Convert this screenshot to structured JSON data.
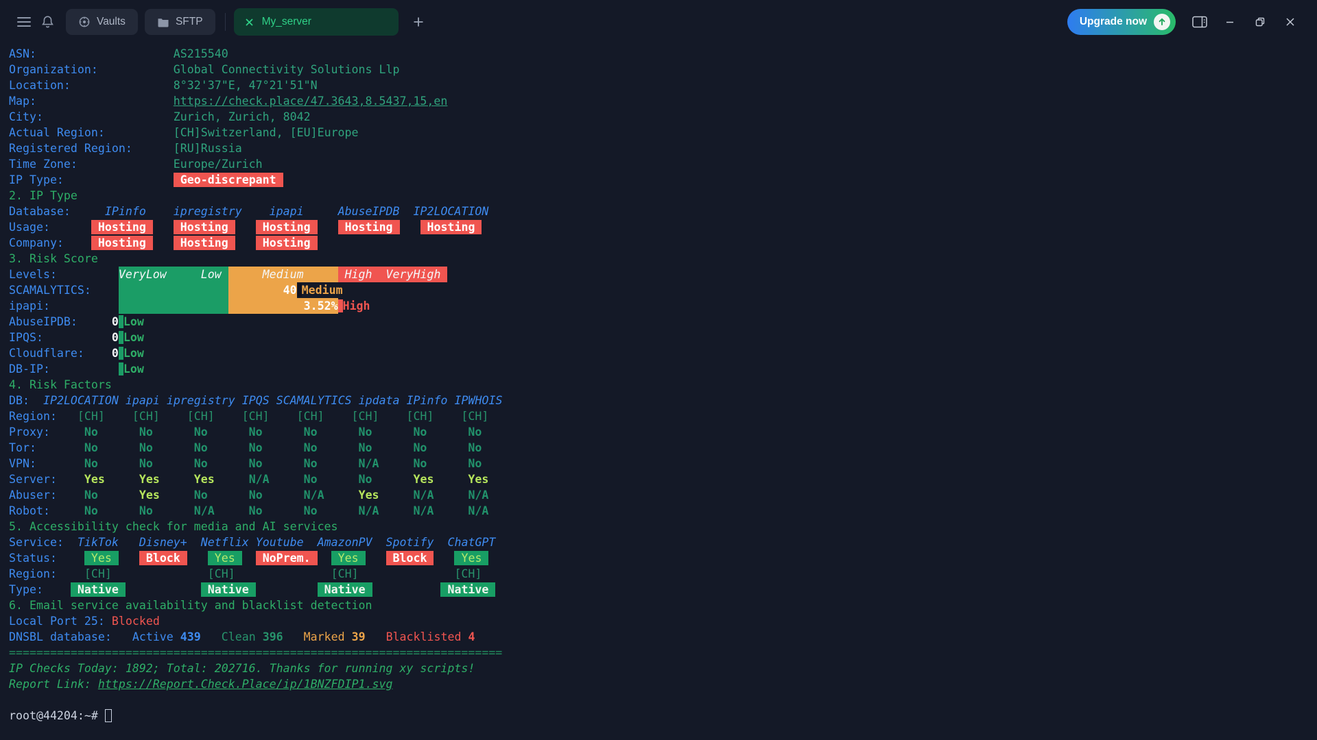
{
  "titlebar": {
    "vaults_label": "Vaults",
    "sftp_label": "SFTP",
    "active_tab_label": "My_server",
    "upgrade_label": "Upgrade now"
  },
  "colors": {
    "background": "#141927",
    "label_blue": "#3e8bf0",
    "value_green": "#2fa37d",
    "header_green": "#2eae67",
    "badge_red": "#f05550",
    "badge_green": "#189e64",
    "bar_orange": "#eca449",
    "lime_yes": "#b5e45c",
    "active_tab_green": "#2fd087",
    "upgrade_gradient": [
      "#2e7cf0",
      "#2abb69"
    ]
  },
  "terminal": {
    "lines": [
      {
        "n": "asn",
        "s": [
          [
            "ASN:",
            "b"
          ],
          [
            "                    "
          ],
          [
            "AS215540",
            "g"
          ]
        ]
      },
      {
        "n": "organization",
        "s": [
          [
            "Organization:",
            "b"
          ],
          [
            "           "
          ],
          [
            "Global Connectivity Solutions Llp",
            "g"
          ]
        ]
      },
      {
        "n": "location",
        "s": [
          [
            "Location:",
            "b"
          ],
          [
            "               "
          ],
          [
            "8°32'37\"E, 47°21'51\"N",
            "g"
          ]
        ]
      },
      {
        "n": "map",
        "s": [
          [
            "Map:",
            "b"
          ],
          [
            "                    "
          ],
          [
            "https://check.place/47.3643,8.5437,15,en",
            "lk",
            "map-link"
          ]
        ]
      },
      {
        "n": "city",
        "s": [
          [
            "City:",
            "b"
          ],
          [
            "                   "
          ],
          [
            "Zurich, Zurich, 8042",
            "g"
          ]
        ]
      },
      {
        "n": "actual-region",
        "s": [
          [
            "Actual Region:",
            "b"
          ],
          [
            "          "
          ],
          [
            "[CH]Switzerland, [EU]Europe",
            "g"
          ]
        ]
      },
      {
        "n": "registered-region",
        "s": [
          [
            "Registered Region:",
            "b"
          ],
          [
            "      "
          ],
          [
            "[RU]Russia",
            "g"
          ]
        ]
      },
      {
        "n": "time-zone",
        "s": [
          [
            "Time Zone:",
            "b"
          ],
          [
            "              "
          ],
          [
            "Europe/Zurich",
            "g"
          ]
        ]
      },
      {
        "n": "ip-type",
        "s": [
          [
            "IP Type:",
            "b"
          ],
          [
            "                "
          ],
          [
            " Geo-discrepant ",
            "rb"
          ]
        ]
      },
      {
        "n": "section-2",
        "s": [
          [
            "2. IP Type",
            "h"
          ]
        ]
      },
      {
        "n": "database-header",
        "s": [
          [
            "Database:",
            "b"
          ],
          [
            "     "
          ],
          [
            "IPinfo",
            "ib"
          ],
          [
            "    "
          ],
          [
            "ipregistry",
            "ib"
          ],
          [
            "    "
          ],
          [
            "ipapi",
            "ib"
          ],
          [
            "     "
          ],
          [
            "AbuseIPDB",
            "ib"
          ],
          [
            "  "
          ],
          [
            "IP2LOCATION",
            "ib"
          ]
        ]
      },
      {
        "n": "usage",
        "s": [
          [
            "Usage:",
            "b"
          ],
          [
            "      "
          ],
          [
            " Hosting ",
            "rb"
          ],
          [
            "   "
          ],
          [
            " Hosting ",
            "rb"
          ],
          [
            "   "
          ],
          [
            " Hosting ",
            "rb"
          ],
          [
            "   "
          ],
          [
            " Hosting ",
            "rb"
          ],
          [
            "   "
          ],
          [
            " Hosting ",
            "rb"
          ]
        ]
      },
      {
        "n": "company",
        "s": [
          [
            "Company:",
            "b"
          ],
          [
            "    "
          ],
          [
            " Hosting ",
            "rb"
          ],
          [
            "   "
          ],
          [
            " Hosting ",
            "rb"
          ],
          [
            "   "
          ],
          [
            " Hosting ",
            "rb"
          ]
        ]
      },
      {
        "n": "section-3",
        "s": [
          [
            "3. Risk Score",
            "h"
          ]
        ]
      },
      {
        "n": "levels",
        "s": [
          [
            "Levels:",
            "b"
          ],
          [
            "         "
          ],
          [
            "VeryLow     Low ",
            "barG bt"
          ],
          [
            "     Medium     ",
            "barO bt"
          ],
          [
            " High  VeryHigh ",
            "barR bt"
          ]
        ]
      },
      {
        "n": "scamalytics",
        "s": [
          [
            "SCAMALYTICS:",
            "b"
          ],
          [
            "    "
          ],
          [
            "                ",
            "barG"
          ],
          [
            "        ",
            "barO"
          ],
          [
            "40",
            "barO wb2"
          ],
          [
            "",
            "vbD"
          ],
          [
            "Medium",
            "mo"
          ]
        ]
      },
      {
        "n": "ipapi-score",
        "s": [
          [
            "ipapi:",
            "b"
          ],
          [
            "          "
          ],
          [
            "                ",
            "barG"
          ],
          [
            "           ",
            "barO"
          ],
          [
            "3.52%",
            "barO wb2"
          ],
          [
            "",
            "vbR"
          ],
          [
            "High",
            "hr"
          ]
        ]
      },
      {
        "n": "abuseipdb-score",
        "s": [
          [
            "AbuseIPDB:",
            "b"
          ],
          [
            "     "
          ],
          [
            "0",
            "wb"
          ],
          [
            "",
            "vbG"
          ],
          [
            "Low",
            "lo"
          ]
        ]
      },
      {
        "n": "ipqs-score",
        "s": [
          [
            "IPQS:",
            "b"
          ],
          [
            "          "
          ],
          [
            "0",
            "wb"
          ],
          [
            "",
            "vbG"
          ],
          [
            "Low",
            "lo"
          ]
        ]
      },
      {
        "n": "cloudflare-score",
        "s": [
          [
            "Cloudflare:",
            "b"
          ],
          [
            "    "
          ],
          [
            "0",
            "wb"
          ],
          [
            "",
            "vbG"
          ],
          [
            "Low",
            "lo"
          ]
        ]
      },
      {
        "n": "dbip-score",
        "s": [
          [
            "DB-IP:",
            "b"
          ],
          [
            "          "
          ],
          [
            "",
            "vbG"
          ],
          [
            "Low",
            "lo"
          ]
        ]
      },
      {
        "n": "section-4",
        "s": [
          [
            "4. Risk Factors",
            "h"
          ]
        ]
      },
      {
        "n": "db-header",
        "s": [
          [
            "DB:",
            "b"
          ],
          [
            "  "
          ],
          [
            "IP2LOCATION",
            "ib"
          ],
          [
            " "
          ],
          [
            "ipapi",
            "ib"
          ],
          [
            " "
          ],
          [
            "ipregistry",
            "ib"
          ],
          [
            " "
          ],
          [
            "IPQS",
            "ib"
          ],
          [
            " "
          ],
          [
            "SCAMALYTICS",
            "ib"
          ],
          [
            " "
          ],
          [
            "ipdata",
            "ib"
          ],
          [
            " "
          ],
          [
            "IPinfo",
            "ib"
          ],
          [
            " "
          ],
          [
            "IPWHOIS",
            "ib"
          ]
        ]
      },
      {
        "n": "region-row",
        "s": [
          [
            "Region:",
            "b"
          ],
          [
            "   "
          ],
          [
            "[CH]    [CH]    [CH]    [CH]    [CH]    [CH]    [CH]    [CH]",
            "cg"
          ]
        ]
      },
      {
        "n": "proxy-row",
        "s": [
          [
            "Proxy:",
            "b"
          ],
          [
            "     "
          ],
          [
            "No      No      No      No      No      No      No      No",
            "no"
          ]
        ]
      },
      {
        "n": "tor-row",
        "s": [
          [
            "Tor:",
            "b"
          ],
          [
            "       "
          ],
          [
            "No      No      No      No      No      No      No      No",
            "no"
          ]
        ]
      },
      {
        "n": "vpn-row",
        "s": [
          [
            "VPN:",
            "b"
          ],
          [
            "       "
          ],
          [
            "No      No      No      No      No      N/A     No      No",
            "no"
          ]
        ]
      },
      {
        "n": "server-row",
        "s": [
          [
            "Server:",
            "b"
          ],
          [
            "    "
          ],
          [
            "Yes     Yes     Yes",
            "ys"
          ],
          [
            "     "
          ],
          [
            "N/A     No      No",
            "no"
          ],
          [
            "      "
          ],
          [
            "Yes     Yes",
            "ys"
          ]
        ]
      },
      {
        "n": "abuser-row",
        "s": [
          [
            "Abuser:",
            "b"
          ],
          [
            "    "
          ],
          [
            "No",
            "no"
          ],
          [
            "      "
          ],
          [
            "Yes",
            "ys"
          ],
          [
            "     "
          ],
          [
            "No      No",
            "no"
          ],
          [
            "      "
          ],
          [
            "N/A",
            "no"
          ],
          [
            "     "
          ],
          [
            "Yes",
            "ys"
          ],
          [
            "     "
          ],
          [
            "N/A     N/A",
            "no"
          ]
        ]
      },
      {
        "n": "robot-row",
        "s": [
          [
            "Robot:",
            "b"
          ],
          [
            "     "
          ],
          [
            "No      No      N/A     No      No      N/A     N/A     N/A",
            "no"
          ]
        ]
      },
      {
        "n": "section-5",
        "s": [
          [
            "5. Accessibility check for media and AI services",
            "h"
          ]
        ]
      },
      {
        "n": "service-header",
        "s": [
          [
            "Service:",
            "b"
          ],
          [
            "  "
          ],
          [
            "TikTok",
            "ib"
          ],
          [
            "   "
          ],
          [
            "Disney+",
            "ib"
          ],
          [
            "  "
          ],
          [
            "Netflix",
            "ib"
          ],
          [
            " "
          ],
          [
            "Youtube",
            "ib"
          ],
          [
            "  "
          ],
          [
            "AmazonPV",
            "ib"
          ],
          [
            "  "
          ],
          [
            "Spotify",
            "ib"
          ],
          [
            "  "
          ],
          [
            "ChatGPT",
            "ib"
          ]
        ]
      },
      {
        "n": "status-row",
        "s": [
          [
            "Status:",
            "b"
          ],
          [
            "    "
          ],
          [
            " Yes ",
            "gy"
          ],
          [
            "   "
          ],
          [
            " Block ",
            "rb"
          ],
          [
            "   "
          ],
          [
            " Yes ",
            "gy"
          ],
          [
            "  "
          ],
          [
            " NoPrem. ",
            "rb"
          ],
          [
            "  "
          ],
          [
            " Yes ",
            "gy"
          ],
          [
            "   "
          ],
          [
            " Block ",
            "rb"
          ],
          [
            "   "
          ],
          [
            " Yes ",
            "gy"
          ]
        ]
      },
      {
        "n": "service-region-row",
        "s": [
          [
            "Region:",
            "b"
          ],
          [
            "    "
          ],
          [
            "[CH]",
            "cg"
          ],
          [
            "              "
          ],
          [
            "[CH]",
            "cg"
          ],
          [
            "              "
          ],
          [
            "[CH]",
            "cg"
          ],
          [
            "              "
          ],
          [
            "[CH]",
            "cg"
          ]
        ]
      },
      {
        "n": "type-row",
        "s": [
          [
            "Type:",
            "b"
          ],
          [
            "    "
          ],
          [
            " Native ",
            "gb"
          ],
          [
            "           "
          ],
          [
            " Native ",
            "gb"
          ],
          [
            "         "
          ],
          [
            " Native ",
            "gb"
          ],
          [
            "          "
          ],
          [
            " Native ",
            "gb"
          ]
        ]
      },
      {
        "n": "section-6",
        "s": [
          [
            "6. Email service availability and blacklist detection",
            "h"
          ]
        ]
      },
      {
        "n": "local-port",
        "s": [
          [
            "Local Port 25:",
            "b"
          ],
          [
            " "
          ],
          [
            "Blocked",
            "rd"
          ]
        ]
      },
      {
        "n": "dnsbl",
        "s": [
          [
            "DNSBL database:",
            "b"
          ],
          [
            "   "
          ],
          [
            "Active ",
            "bl"
          ],
          [
            "439",
            "bl bd"
          ],
          [
            "   "
          ],
          [
            "Clean ",
            "dg"
          ],
          [
            "396",
            "dg bd"
          ],
          [
            "   "
          ],
          [
            "Marked ",
            "og"
          ],
          [
            "39",
            "og bd"
          ],
          [
            "   "
          ],
          [
            "Blacklisted ",
            "rd"
          ],
          [
            "4",
            "rd bd"
          ]
        ]
      },
      {
        "n": "separator",
        "s": [
          [
            "========================================================================",
            "sep"
          ]
        ]
      },
      {
        "n": "footer-checks",
        "s": [
          [
            "IP Checks Today: 1892; Total: 202716. Thanks for running xy scripts!",
            "ig"
          ]
        ]
      },
      {
        "n": "footer-report",
        "s": [
          [
            "Report Link: ",
            "ig"
          ],
          [
            "https://Report.Check.Place/ip/1BNZFDIP1.svg",
            "il",
            "report-link"
          ]
        ]
      },
      {
        "n": "blank",
        "s": [
          [
            ""
          ]
        ]
      },
      {
        "n": "prompt",
        "s": [
          [
            "root@44204:~# ",
            "pr"
          ],
          [
            "",
            "cur",
            "terminal-cursor"
          ]
        ]
      }
    ]
  }
}
